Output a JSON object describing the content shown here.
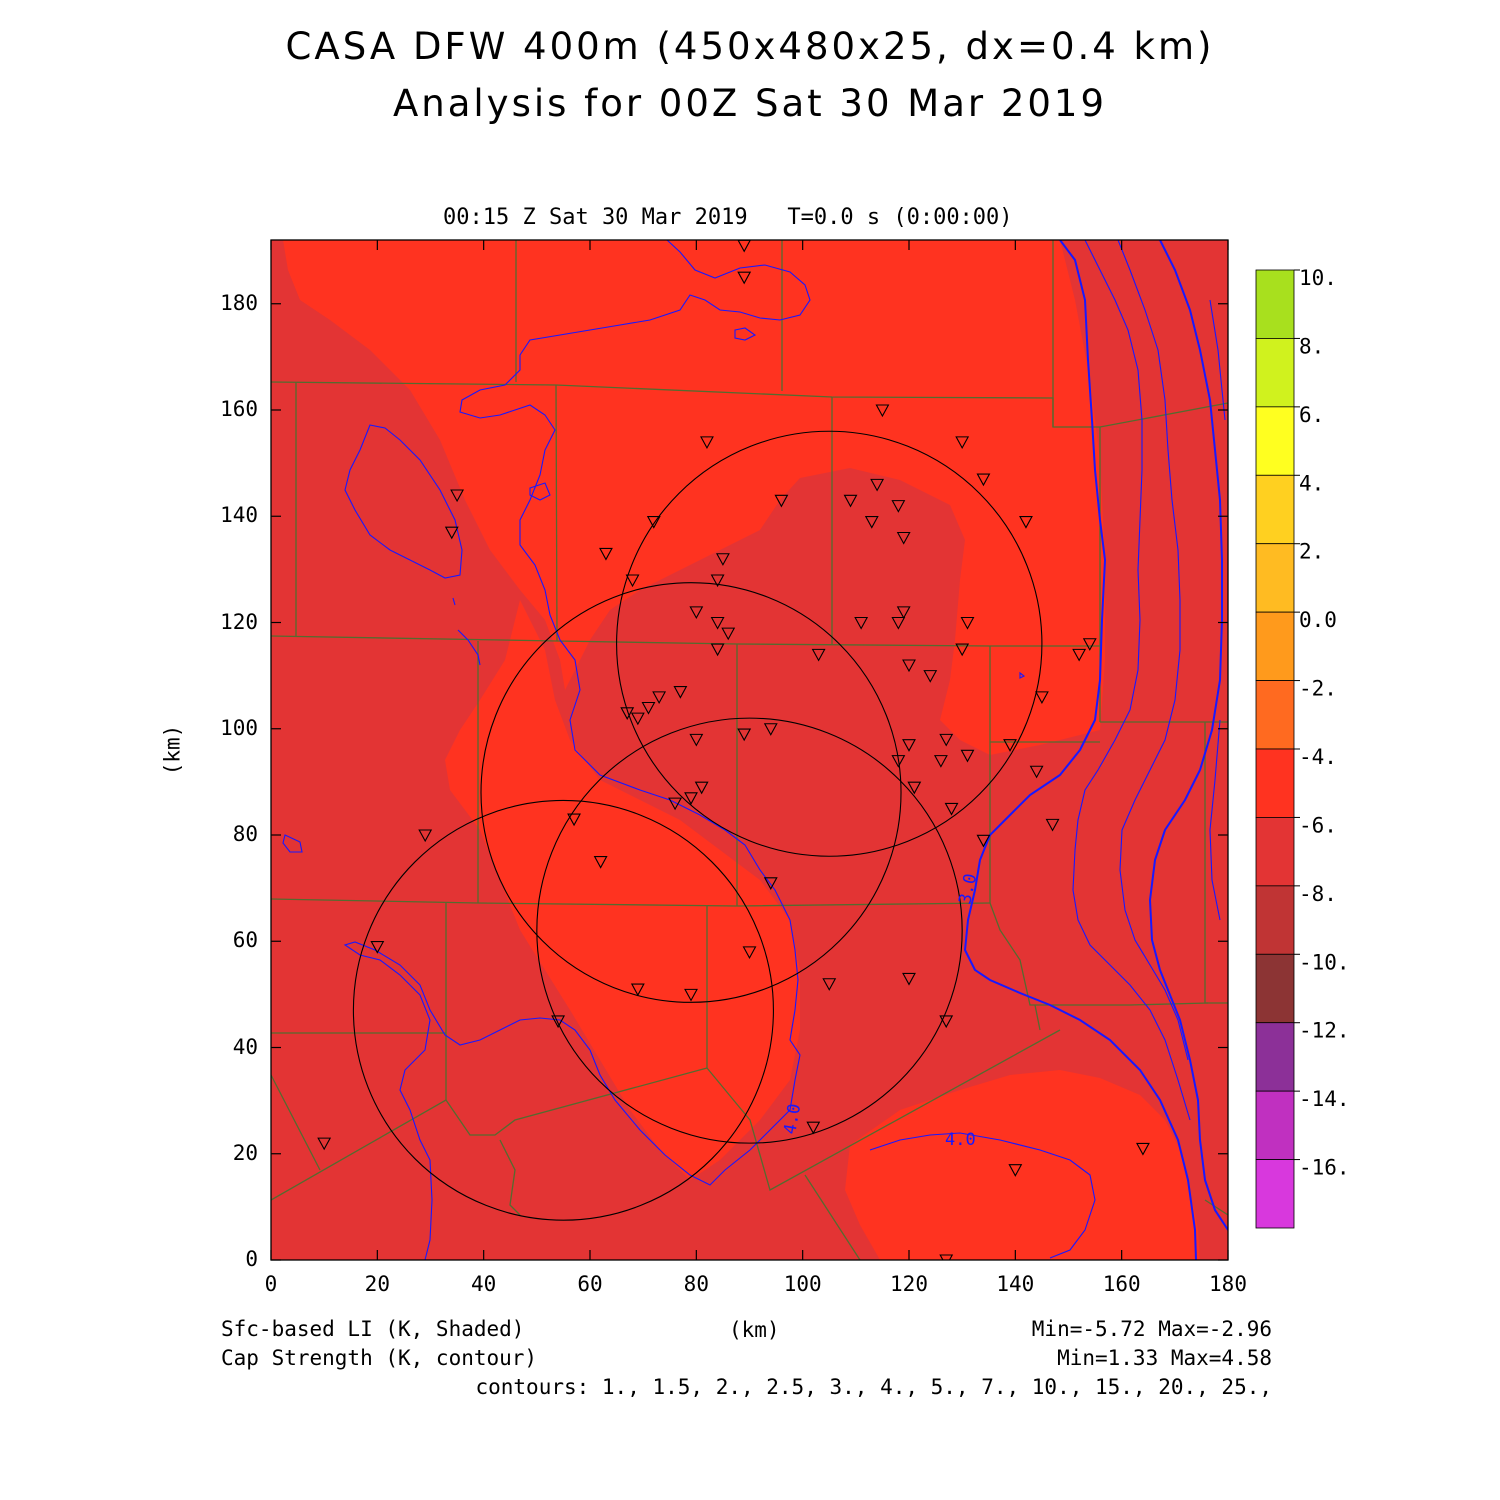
{
  "header": {
    "title_line1": "CASA DFW 400m (450x480x25, dx=0.4 km)",
    "title_line2": "Analysis for 00Z Sat 30 Mar 2019",
    "valid_time": "00:15 Z Sat 30 Mar 2019   T=0.0 s (0:00:00)"
  },
  "axes": {
    "x_label": "(km)",
    "y_label": "(km)",
    "x_ticks": [
      "0",
      "20",
      "40",
      "60",
      "80",
      "100",
      "120",
      "140",
      "160",
      "180"
    ],
    "y_ticks": [
      "0",
      "20",
      "40",
      "60",
      "80",
      "100",
      "120",
      "140",
      "160",
      "180"
    ],
    "x_range_km": [
      0,
      180
    ],
    "y_range_km": [
      0,
      192
    ]
  },
  "colorbar": {
    "labels": [
      "10.",
      "8.",
      "6.",
      "4.",
      "2.",
      "0.0",
      "-2.",
      "-4.",
      "-6.",
      "-8.",
      "-10.",
      "-12.",
      "-14.",
      "-16."
    ],
    "colors": [
      "#a8e01e",
      "#d0f21e",
      "#ffff20",
      "#ffd020",
      "#ffbb22",
      "#ff9a1c",
      "#ff6a20",
      "#ff3320",
      "#e33434",
      "#c03434",
      "#8c3434",
      "#8c3098",
      "#c030c0",
      "#d838dd"
    ]
  },
  "field_colors": {
    "shade_minus4_to_minus2": "#ff3320",
    "shade_minus6_to_minus4": "#e33434",
    "contour": "#1818ff",
    "county_lines": "#556b2f",
    "radar_rings": "#000000"
  },
  "contour_labels": [
    "3.0",
    "4.0",
    "4.0"
  ],
  "radar_rings_km": [
    {
      "center": [
        105,
        116
      ],
      "radius": 40
    },
    {
      "center": [
        79,
        88
      ],
      "radius": 39.5
    },
    {
      "center": [
        90,
        62
      ],
      "radius": 40
    },
    {
      "center": [
        55,
        47
      ],
      "radius": 39.5
    }
  ],
  "stations_km": [
    [
      89,
      191
    ],
    [
      89,
      185
    ],
    [
      115,
      160
    ],
    [
      82,
      154
    ],
    [
      130,
      154
    ],
    [
      134,
      147
    ],
    [
      35,
      144
    ],
    [
      114,
      146
    ],
    [
      118,
      142
    ],
    [
      96,
      143
    ],
    [
      109,
      143
    ],
    [
      72,
      139
    ],
    [
      142,
      139
    ],
    [
      113,
      139
    ],
    [
      34,
      137
    ],
    [
      119,
      136
    ],
    [
      63,
      133
    ],
    [
      85,
      132
    ],
    [
      68,
      128
    ],
    [
      84,
      128
    ],
    [
      80,
      122
    ],
    [
      119,
      122
    ],
    [
      118,
      120
    ],
    [
      111,
      120
    ],
    [
      131,
      120
    ],
    [
      84,
      120
    ],
    [
      86,
      118
    ],
    [
      84,
      115
    ],
    [
      103,
      114
    ],
    [
      130,
      115
    ],
    [
      152,
      114
    ],
    [
      154,
      116
    ],
    [
      120,
      112
    ],
    [
      124,
      110
    ],
    [
      145,
      106
    ],
    [
      77,
      107
    ],
    [
      73,
      106
    ],
    [
      71,
      104
    ],
    [
      67,
      103
    ],
    [
      69,
      102
    ],
    [
      94,
      100
    ],
    [
      89,
      99
    ],
    [
      80,
      98
    ],
    [
      127,
      98
    ],
    [
      120,
      97
    ],
    [
      139,
      97
    ],
    [
      126,
      94
    ],
    [
      131,
      95
    ],
    [
      118,
      94
    ],
    [
      144,
      92
    ],
    [
      81,
      89
    ],
    [
      121,
      89
    ],
    [
      79,
      87
    ],
    [
      76,
      86
    ],
    [
      128,
      85
    ],
    [
      57,
      83
    ],
    [
      29,
      80
    ],
    [
      134,
      79
    ],
    [
      147,
      82
    ],
    [
      62,
      75
    ],
    [
      94,
      71
    ],
    [
      20,
      59
    ],
    [
      90,
      58
    ],
    [
      120,
      53
    ],
    [
      105,
      52
    ],
    [
      69,
      51
    ],
    [
      79,
      50
    ],
    [
      127,
      45
    ],
    [
      54,
      45
    ],
    [
      102,
      25
    ],
    [
      10,
      22
    ],
    [
      164,
      21
    ],
    [
      140,
      17
    ],
    [
      127,
      0
    ]
  ],
  "footer": {
    "shaded_field": "Sfc-based LI (K, Shaded)",
    "contour_field": "Cap Strength (K, contour)",
    "x_label": "(km)",
    "shaded_minmax": "Min=-5.72 Max=-2.96",
    "contour_minmax": "Min=1.33 Max=4.58",
    "contours": "contours: 1., 1.5, 2., 2.5, 3., 4., 5., 7., 10., 15., 20., 25.,"
  }
}
